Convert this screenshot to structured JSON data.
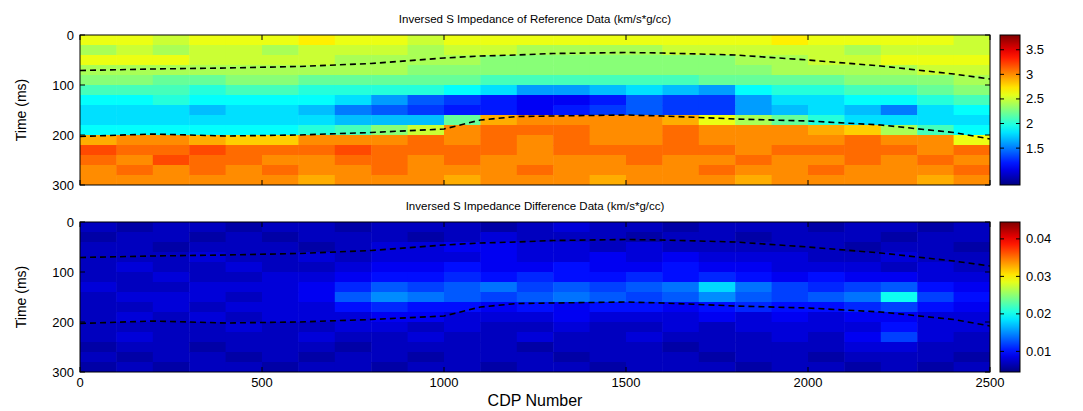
{
  "chart_data": [
    {
      "type": "heatmap",
      "title": "Inversed S Impedance of Reference Data (km/s*g/cc)",
      "ylabel": "Time (ms)",
      "xlim": [
        0,
        2500
      ],
      "ylim": [
        300,
        0
      ],
      "xticks": [
        0,
        500,
        1000,
        1500,
        2000,
        2500
      ],
      "yticks": [
        0,
        100,
        200,
        300
      ],
      "tick_labels": "y",
      "x": [
        50,
        150,
        250,
        350,
        450,
        550,
        650,
        750,
        850,
        950,
        1050,
        1150,
        1250,
        1350,
        1450,
        1550,
        1650,
        1750,
        1850,
        1950,
        2050,
        2150,
        2250,
        2350,
        2450
      ],
      "y": [
        10,
        30,
        50,
        70,
        90,
        110,
        130,
        150,
        170,
        190,
        210,
        230,
        250,
        270,
        290
      ],
      "cells": [
        [
          2.6,
          2.6,
          2.5,
          2.6,
          2.6,
          2.6,
          2.7,
          2.6,
          2.6,
          2.5,
          2.6,
          2.6,
          2.6,
          2.6,
          2.6,
          2.6,
          2.6,
          2.6,
          2.6,
          2.7,
          2.6,
          2.6,
          2.6,
          2.6,
          2.5
        ],
        [
          2.4,
          2.5,
          2.4,
          2.5,
          2.5,
          2.4,
          2.5,
          2.5,
          2.5,
          2.4,
          2.5,
          2.5,
          2.4,
          2.4,
          2.4,
          2.4,
          2.5,
          2.5,
          2.5,
          2.5,
          2.5,
          2.4,
          2.5,
          2.5,
          2.5
        ],
        [
          2.6,
          2.6,
          2.6,
          2.5,
          2.5,
          2.5,
          2.5,
          2.4,
          2.4,
          2.4,
          2.4,
          2.3,
          2.3,
          2.3,
          2.3,
          2.3,
          2.3,
          2.3,
          2.4,
          2.4,
          2.5,
          2.5,
          2.6,
          2.6,
          2.6
        ],
        [
          2.4,
          2.4,
          2.4,
          2.4,
          2.4,
          2.4,
          2.4,
          2.4,
          2.4,
          2.3,
          2.3,
          2.3,
          2.3,
          2.3,
          2.3,
          2.3,
          2.3,
          2.3,
          2.3,
          2.4,
          2.4,
          2.4,
          2.4,
          2.5,
          2.5
        ],
        [
          2.3,
          2.3,
          2.2,
          2.2,
          2.3,
          2.3,
          2.2,
          2.2,
          2.2,
          2.2,
          2.2,
          2.1,
          2.1,
          2.1,
          2.1,
          2.1,
          2.1,
          2.2,
          2.2,
          2.2,
          2.2,
          2.3,
          2.3,
          2.3,
          2.4
        ],
        [
          2.1,
          2.1,
          2.1,
          2.0,
          2.1,
          2.1,
          2.0,
          2.0,
          2.0,
          2.0,
          1.9,
          1.8,
          1.6,
          1.6,
          1.7,
          1.8,
          1.7,
          1.6,
          1.9,
          2.0,
          2.0,
          2.1,
          2.1,
          2.2,
          2.3
        ],
        [
          1.9,
          1.9,
          2.0,
          1.9,
          1.9,
          1.9,
          1.9,
          1.8,
          1.6,
          1.4,
          1.3,
          1.2,
          1.1,
          1.1,
          1.2,
          1.4,
          1.3,
          1.3,
          1.6,
          1.8,
          1.8,
          1.9,
          1.9,
          2.0,
          2.1
        ],
        [
          1.8,
          1.8,
          1.8,
          1.7,
          1.8,
          1.8,
          1.7,
          1.5,
          1.4,
          1.3,
          1.2,
          1.2,
          1.1,
          1.2,
          1.3,
          1.4,
          1.3,
          1.3,
          1.6,
          1.7,
          1.8,
          1.7,
          1.5,
          1.8,
          1.9
        ],
        [
          1.8,
          1.8,
          1.8,
          1.8,
          1.8,
          1.8,
          1.8,
          1.7,
          1.7,
          1.7,
          2.2,
          2.9,
          3.0,
          3.0,
          3.0,
          3.0,
          2.9,
          2.6,
          2.4,
          2.2,
          2.0,
          1.8,
          1.8,
          1.8,
          1.8
        ],
        [
          1.9,
          1.9,
          1.9,
          1.9,
          1.9,
          1.9,
          2.0,
          2.1,
          2.3,
          2.5,
          3.0,
          3.1,
          3.1,
          3.1,
          3.0,
          3.0,
          3.1,
          3.0,
          3.0,
          3.0,
          2.9,
          2.8,
          2.4,
          2.1,
          1.9
        ],
        [
          2.9,
          3.0,
          3.0,
          2.9,
          2.8,
          2.8,
          3.0,
          3.0,
          3.0,
          3.1,
          3.0,
          3.1,
          3.0,
          3.1,
          3.0,
          3.0,
          3.1,
          3.0,
          3.0,
          3.0,
          3.0,
          3.1,
          3.0,
          3.0,
          2.6
        ],
        [
          3.2,
          3.1,
          3.1,
          3.2,
          3.1,
          3.1,
          3.1,
          3.2,
          3.1,
          3.1,
          3.1,
          3.1,
          3.0,
          3.1,
          3.1,
          3.1,
          3.1,
          3.1,
          3.0,
          3.1,
          3.1,
          3.1,
          3.1,
          3.0,
          3.1
        ],
        [
          3.1,
          3.0,
          3.2,
          3.1,
          3.1,
          3.0,
          3.0,
          3.1,
          3.1,
          3.0,
          3.1,
          3.0,
          3.0,
          3.0,
          3.0,
          3.1,
          3.0,
          3.0,
          3.1,
          3.0,
          3.0,
          3.1,
          3.0,
          3.1,
          3.0
        ],
        [
          3.0,
          3.1,
          3.0,
          3.1,
          3.0,
          3.1,
          3.0,
          3.0,
          3.1,
          3.0,
          3.0,
          3.0,
          3.1,
          3.0,
          3.0,
          3.0,
          3.0,
          3.1,
          3.0,
          3.0,
          3.1,
          3.0,
          3.0,
          3.0,
          3.1
        ],
        [
          3.0,
          3.0,
          3.0,
          3.0,
          3.0,
          3.0,
          2.9,
          3.0,
          3.0,
          3.0,
          2.9,
          3.0,
          3.0,
          3.0,
          2.9,
          3.0,
          3.0,
          3.0,
          2.9,
          3.0,
          3.0,
          3.0,
          3.0,
          2.9,
          3.0
        ]
      ],
      "colorbar": {
        "range": [
          0.75,
          3.8
        ],
        "ticks": [
          1.5,
          2,
          2.5,
          3,
          3.5
        ]
      },
      "series": [
        {
          "type": "line",
          "color": "#000000",
          "line_style": "dashed",
          "x": [
            0,
            200,
            400,
            600,
            800,
            1000,
            1100,
            1200,
            1300,
            1400,
            1500,
            1600,
            1800,
            2000,
            2200,
            2400,
            2500
          ],
          "values": [
            71,
            68,
            66,
            63,
            57,
            46,
            42,
            40,
            37,
            36,
            35,
            36,
            40,
            50,
            62,
            78,
            88
          ]
        },
        {
          "type": "line",
          "color": "#000000",
          "line_style": "dashed",
          "x": [
            0,
            200,
            400,
            600,
            800,
            1000,
            1100,
            1200,
            1300,
            1400,
            1500,
            1600,
            1800,
            2000,
            2200,
            2400,
            2500
          ],
          "values": [
            203,
            198,
            202,
            200,
            195,
            188,
            170,
            163,
            162,
            161,
            160,
            162,
            168,
            172,
            180,
            195,
            208
          ]
        }
      ]
    },
    {
      "type": "heatmap",
      "title": "Inversed S Impedance Difference Data (km/s*g/cc)",
      "xlabel": "CDP Number",
      "ylabel": "Time (ms)",
      "xlim": [
        0,
        2500
      ],
      "ylim": [
        300,
        0
      ],
      "xticks": [
        0,
        500,
        1000,
        1500,
        2000,
        2500
      ],
      "yticks": [
        0,
        100,
        200,
        300
      ],
      "x": [
        50,
        150,
        250,
        350,
        450,
        550,
        650,
        750,
        850,
        950,
        1050,
        1150,
        1250,
        1350,
        1450,
        1550,
        1650,
        1750,
        1850,
        1950,
        2050,
        2150,
        2250,
        2350,
        2450
      ],
      "y": [
        10,
        30,
        50,
        70,
        90,
        110,
        130,
        150,
        170,
        190,
        210,
        230,
        250,
        270,
        290
      ],
      "cells": [
        [
          0.007,
          0.006,
          0.007,
          0.007,
          0.006,
          0.007,
          0.007,
          0.006,
          0.007,
          0.007,
          0.007,
          0.006,
          0.007,
          0.008,
          0.007,
          0.007,
          0.006,
          0.007,
          0.007,
          0.007,
          0.006,
          0.007,
          0.007,
          0.006,
          0.007
        ],
        [
          0.006,
          0.007,
          0.007,
          0.006,
          0.007,
          0.006,
          0.007,
          0.007,
          0.007,
          0.006,
          0.007,
          0.008,
          0.007,
          0.007,
          0.007,
          0.006,
          0.007,
          0.007,
          0.006,
          0.007,
          0.007,
          0.007,
          0.006,
          0.007,
          0.007
        ],
        [
          0.007,
          0.007,
          0.006,
          0.007,
          0.007,
          0.007,
          0.006,
          0.007,
          0.008,
          0.008,
          0.009,
          0.009,
          0.008,
          0.008,
          0.007,
          0.008,
          0.007,
          0.007,
          0.007,
          0.007,
          0.007,
          0.006,
          0.007,
          0.007,
          0.006
        ],
        [
          0.007,
          0.007,
          0.007,
          0.008,
          0.007,
          0.007,
          0.008,
          0.007,
          0.008,
          0.008,
          0.008,
          0.009,
          0.008,
          0.008,
          0.009,
          0.008,
          0.009,
          0.008,
          0.008,
          0.008,
          0.007,
          0.007,
          0.008,
          0.007,
          0.007
        ],
        [
          0.007,
          0.008,
          0.007,
          0.007,
          0.008,
          0.007,
          0.007,
          0.008,
          0.009,
          0.009,
          0.01,
          0.009,
          0.009,
          0.01,
          0.009,
          0.009,
          0.01,
          0.009,
          0.009,
          0.008,
          0.008,
          0.008,
          0.007,
          0.008,
          0.007
        ],
        [
          0.007,
          0.007,
          0.008,
          0.007,
          0.007,
          0.008,
          0.008,
          0.009,
          0.01,
          0.01,
          0.011,
          0.01,
          0.011,
          0.01,
          0.01,
          0.011,
          0.01,
          0.011,
          0.01,
          0.009,
          0.01,
          0.009,
          0.009,
          0.008,
          0.008
        ],
        [
          0.008,
          0.007,
          0.007,
          0.008,
          0.008,
          0.008,
          0.009,
          0.011,
          0.013,
          0.012,
          0.013,
          0.014,
          0.012,
          0.013,
          0.012,
          0.013,
          0.014,
          0.018,
          0.014,
          0.012,
          0.011,
          0.012,
          0.013,
          0.01,
          0.009
        ],
        [
          0.007,
          0.008,
          0.008,
          0.008,
          0.007,
          0.008,
          0.009,
          0.013,
          0.015,
          0.014,
          0.013,
          0.012,
          0.013,
          0.014,
          0.013,
          0.012,
          0.013,
          0.015,
          0.013,
          0.012,
          0.013,
          0.014,
          0.02,
          0.012,
          0.01
        ],
        [
          0.007,
          0.007,
          0.008,
          0.007,
          0.008,
          0.008,
          0.008,
          0.01,
          0.011,
          0.01,
          0.01,
          0.009,
          0.01,
          0.009,
          0.01,
          0.01,
          0.009,
          0.01,
          0.011,
          0.01,
          0.01,
          0.011,
          0.012,
          0.01,
          0.009
        ],
        [
          0.007,
          0.008,
          0.007,
          0.008,
          0.007,
          0.008,
          0.008,
          0.008,
          0.009,
          0.009,
          0.008,
          0.008,
          0.008,
          0.009,
          0.008,
          0.008,
          0.008,
          0.009,
          0.008,
          0.009,
          0.008,
          0.009,
          0.009,
          0.008,
          0.008
        ],
        [
          0.007,
          0.007,
          0.007,
          0.007,
          0.008,
          0.007,
          0.007,
          0.008,
          0.008,
          0.007,
          0.008,
          0.007,
          0.007,
          0.008,
          0.007,
          0.007,
          0.008,
          0.007,
          0.008,
          0.008,
          0.008,
          0.008,
          0.01,
          0.008,
          0.008
        ],
        [
          0.007,
          0.008,
          0.007,
          0.007,
          0.007,
          0.007,
          0.008,
          0.007,
          0.007,
          0.008,
          0.007,
          0.007,
          0.008,
          0.007,
          0.007,
          0.008,
          0.007,
          0.007,
          0.007,
          0.008,
          0.007,
          0.009,
          0.012,
          0.008,
          0.007
        ],
        [
          0.006,
          0.007,
          0.007,
          0.006,
          0.007,
          0.007,
          0.007,
          0.006,
          0.007,
          0.007,
          0.007,
          0.007,
          0.006,
          0.007,
          0.007,
          0.007,
          0.006,
          0.007,
          0.007,
          0.007,
          0.007,
          0.008,
          0.008,
          0.007,
          0.007
        ],
        [
          0.007,
          0.006,
          0.007,
          0.007,
          0.006,
          0.007,
          0.006,
          0.007,
          0.007,
          0.006,
          0.007,
          0.007,
          0.007,
          0.006,
          0.007,
          0.007,
          0.007,
          0.006,
          0.007,
          0.007,
          0.006,
          0.007,
          0.007,
          0.007,
          0.006
        ],
        [
          0.006,
          0.007,
          0.006,
          0.007,
          0.007,
          0.006,
          0.007,
          0.007,
          0.006,
          0.007,
          0.007,
          0.006,
          0.007,
          0.007,
          0.006,
          0.007,
          0.007,
          0.007,
          0.006,
          0.007,
          0.007,
          0.006,
          0.007,
          0.006,
          0.007
        ]
      ],
      "colorbar": {
        "range": [
          0.0045,
          0.0445
        ],
        "ticks": [
          0.01,
          0.02,
          0.03,
          0.04
        ]
      },
      "series": [
        {
          "type": "line",
          "color": "#000000",
          "line_style": "dashed",
          "x": [
            0,
            200,
            400,
            600,
            800,
            1000,
            1100,
            1200,
            1300,
            1400,
            1500,
            1600,
            1800,
            2000,
            2200,
            2400,
            2500
          ],
          "values": [
            71,
            68,
            66,
            63,
            57,
            46,
            42,
            40,
            37,
            36,
            35,
            36,
            40,
            50,
            62,
            78,
            88
          ]
        },
        {
          "type": "line",
          "color": "#000000",
          "line_style": "dashed",
          "x": [
            0,
            200,
            400,
            600,
            800,
            1000,
            1100,
            1200,
            1300,
            1400,
            1500,
            1600,
            1800,
            2000,
            2200,
            2400,
            2500
          ],
          "values": [
            203,
            198,
            202,
            200,
            195,
            188,
            170,
            163,
            162,
            161,
            160,
            162,
            168,
            172,
            180,
            195,
            208
          ]
        }
      ]
    }
  ]
}
